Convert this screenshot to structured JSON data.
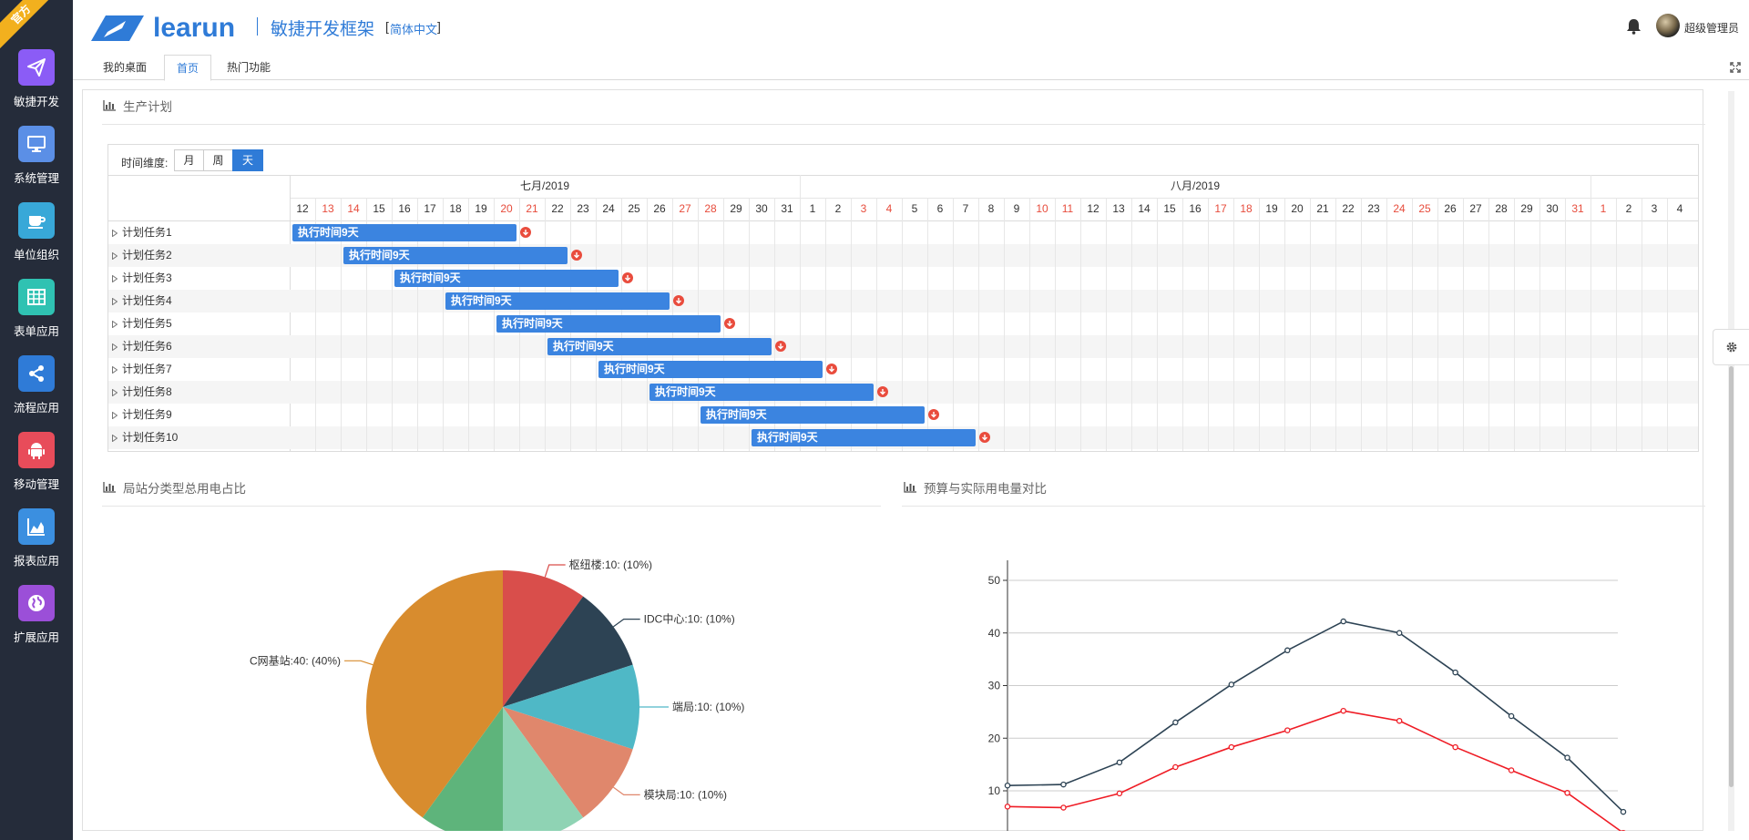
{
  "sidebar": {
    "ribbon": "官方",
    "items": [
      {
        "label": "敏捷开发",
        "icon": "paper-plane-icon",
        "color": "#8b5cf6"
      },
      {
        "label": "系统管理",
        "icon": "monitor-icon",
        "color": "#5b8fe6"
      },
      {
        "label": "单位组织",
        "icon": "coffee-icon",
        "color": "#38a8d8"
      },
      {
        "label": "表单应用",
        "icon": "table-icon",
        "color": "#2fc2b2"
      },
      {
        "label": "流程应用",
        "icon": "share-icon",
        "color": "#2f7bd7"
      },
      {
        "label": "移动管理",
        "icon": "android-icon",
        "color": "#e84c5a"
      },
      {
        "label": "报表应用",
        "icon": "area-chart-icon",
        "color": "#3b8fe0"
      },
      {
        "label": "扩展应用",
        "icon": "globe-icon",
        "color": "#9b4fd8"
      }
    ]
  },
  "header": {
    "logo_text": "learun",
    "product": "敏捷开发框架",
    "lang_open": "[",
    "lang": "简体中文",
    "lang_close": "]",
    "user": "超级管理员"
  },
  "tabs": [
    {
      "label": "我的桌面"
    },
    {
      "label": "首页"
    },
    {
      "label": "热门功能"
    }
  ],
  "production": {
    "title": "生产计划"
  },
  "gantt": {
    "dim_label": "时间维度:",
    "dims": [
      "月",
      "周",
      "天"
    ],
    "active_dim": "天",
    "months": [
      "七月/2019",
      "八月/2019"
    ],
    "days": [
      "12",
      "13",
      "14",
      "15",
      "16",
      "17",
      "18",
      "19",
      "20",
      "21",
      "22",
      "23",
      "24",
      "25",
      "26",
      "27",
      "28",
      "29",
      "30",
      "31",
      "1",
      "2",
      "3",
      "4",
      "5",
      "6",
      "7",
      "8",
      "9",
      "10",
      "11",
      "12",
      "13",
      "14",
      "15",
      "16",
      "17",
      "18",
      "19",
      "20",
      "21",
      "22",
      "23",
      "24",
      "25",
      "26",
      "27",
      "28",
      "29",
      "30",
      "31",
      "1",
      "2",
      "3",
      "4"
    ],
    "weekend_indexes": [
      1,
      2,
      8,
      9,
      15,
      16,
      22,
      23,
      29,
      30,
      36,
      37,
      43,
      44,
      50,
      51
    ],
    "tasks": [
      {
        "name": "计划任务1",
        "bar": "执行时间9天",
        "start_day_index": 0
      },
      {
        "name": "计划任务2",
        "bar": "执行时间9天",
        "start_day_index": 2
      },
      {
        "name": "计划任务3",
        "bar": "执行时间9天",
        "start_day_index": 4
      },
      {
        "name": "计划任务4",
        "bar": "执行时间9天",
        "start_day_index": 6
      },
      {
        "name": "计划任务5",
        "bar": "执行时间9天",
        "start_day_index": 8
      },
      {
        "name": "计划任务6",
        "bar": "执行时间9天",
        "start_day_index": 10
      },
      {
        "name": "计划任务7",
        "bar": "执行时间9天",
        "start_day_index": 12
      },
      {
        "name": "计划任务8",
        "bar": "执行时间9天",
        "start_day_index": 14
      },
      {
        "name": "计划任务9",
        "bar": "执行时间9天",
        "start_day_index": 16
      },
      {
        "name": "计划任务10",
        "bar": "执行时间9天",
        "start_day_index": 18
      }
    ]
  },
  "pie_section": {
    "title": "局站分类型总用电占比"
  },
  "line_section": {
    "title": "预算与实际用电量对比"
  },
  "chart_data": [
    {
      "type": "pie",
      "slices": [
        {
          "label": "枢纽楼:10: (10%)",
          "value": 10,
          "color": "#d94e4b"
        },
        {
          "label": "IDC中心:10: (10%)",
          "value": 10,
          "color": "#2d4354"
        },
        {
          "label": "端局:10: (10%)",
          "value": 10,
          "color": "#4fb8c6"
        },
        {
          "label": "模块局:10: (10%)",
          "value": 10,
          "color": "#e0876c"
        },
        {
          "label": "",
          "value": 10,
          "color": "#8fd3b4"
        },
        {
          "label": "",
          "value": 10,
          "color": "#5eb47b"
        },
        {
          "label": "C网基站:40: (40%)",
          "value": 40,
          "color": "#d88c2e"
        }
      ]
    },
    {
      "type": "line",
      "ylim": [
        0,
        50
      ],
      "yticks": [
        10,
        20,
        30,
        40,
        50
      ],
      "series": [
        {
          "values": [
            11,
            11.2,
            15.4,
            23,
            30.2,
            36.7,
            42.2,
            40,
            32.5,
            24.2,
            16.3,
            6
          ],
          "color": "#2d4354"
        },
        {
          "values": [
            7,
            6.8,
            9.5,
            14.5,
            18.3,
            21.5,
            25.2,
            23.3,
            18.3,
            13.9,
            9.6,
            2
          ],
          "color": "#ef1c25"
        }
      ]
    }
  ]
}
